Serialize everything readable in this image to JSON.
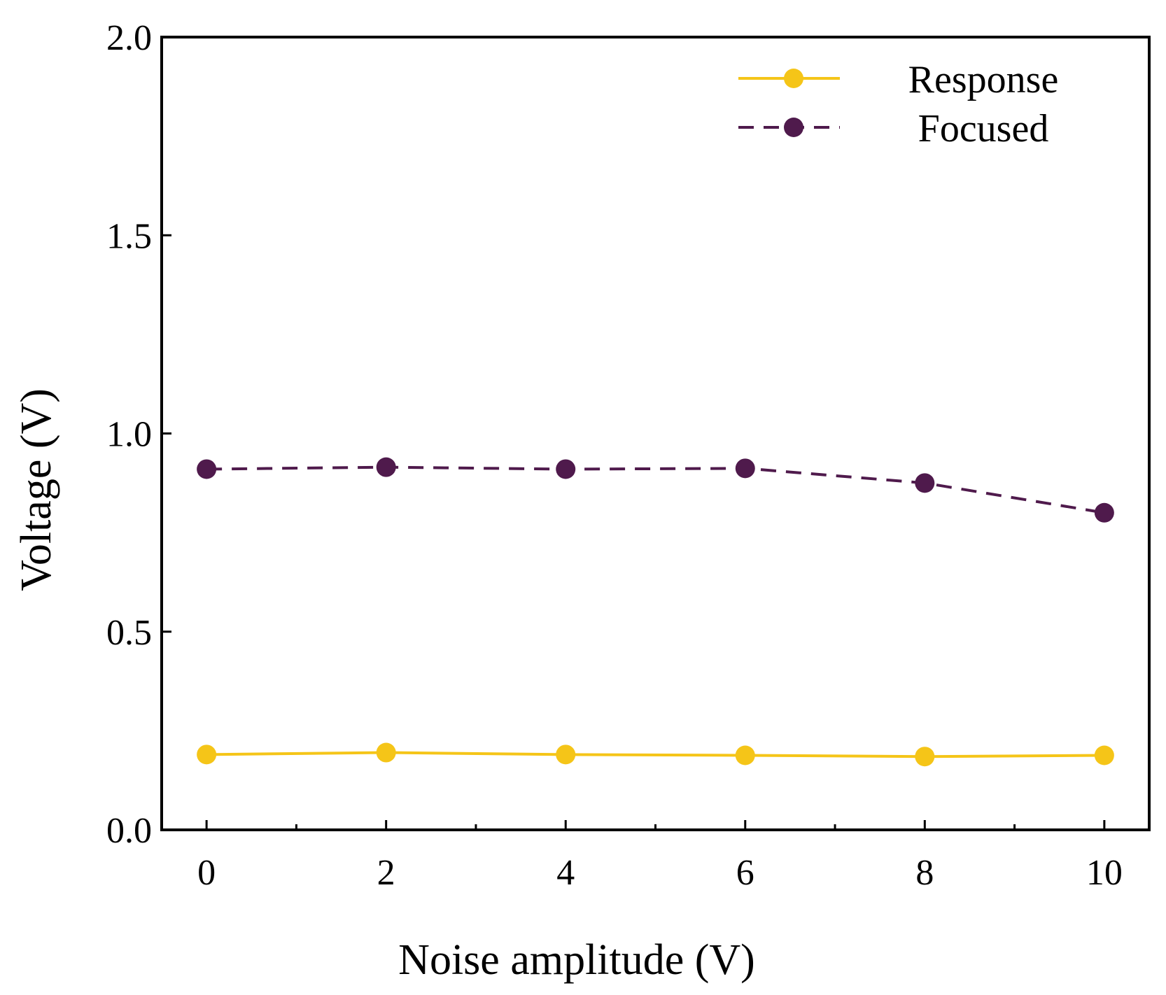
{
  "chart_data": {
    "type": "line",
    "title": "",
    "xlabel": "Noise amplitude (V)",
    "ylabel": "Voltage (V)",
    "xlim": [
      -0.5,
      10.5
    ],
    "ylim": [
      0.0,
      2.0
    ],
    "xticks": [
      0,
      2,
      4,
      6,
      8,
      10
    ],
    "xtick_labels": [
      "0",
      "2",
      "4",
      "6",
      "8",
      "10"
    ],
    "xminor_ticks": [
      1,
      3,
      5,
      7,
      9
    ],
    "yticks": [
      0.0,
      0.5,
      1.0,
      1.5,
      2.0
    ],
    "ytick_labels": [
      "0.0",
      "0.5",
      "1.0",
      "1.5",
      "2.0"
    ],
    "grid": false,
    "legend_position": "top-right",
    "x": [
      0,
      2,
      4,
      6,
      8,
      10
    ],
    "series": [
      {
        "name": "Response",
        "color": "#f5c518",
        "line_style": "solid",
        "values": [
          0.19,
          0.195,
          0.19,
          0.188,
          0.185,
          0.188
        ]
      },
      {
        "name": "Focused",
        "color": "#4f1a4c",
        "line_style": "dashed",
        "values": [
          0.91,
          0.915,
          0.91,
          0.912,
          0.875,
          0.8
        ]
      }
    ]
  }
}
